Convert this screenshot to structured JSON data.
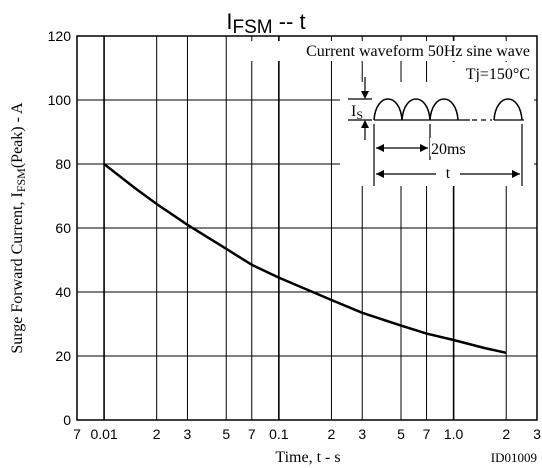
{
  "chart_data": {
    "type": "line",
    "title": "I",
    "title_sub": "FSM",
    "title_suffix": " -- t",
    "ylabel_main": "Surge Forward Current, I",
    "ylabel_sub": "FSM",
    "ylabel_suffix": "(Peak)  -  A",
    "xlabel": "Time, t  - s",
    "figure_id": "ID01009",
    "x_scale": "log",
    "xlim": [
      0.007,
      3
    ],
    "ylim": [
      0,
      120
    ],
    "grid": true,
    "y_ticks": [
      "0",
      "20",
      "40",
      "60",
      "80",
      "100",
      "120"
    ],
    "x_tick_labels": [
      {
        "value": 0.007,
        "label": "7"
      },
      {
        "value": 0.01,
        "label": "0.01"
      },
      {
        "value": 0.02,
        "label": "2"
      },
      {
        "value": 0.03,
        "label": "3"
      },
      {
        "value": 0.05,
        "label": "5"
      },
      {
        "value": 0.07,
        "label": "7"
      },
      {
        "value": 0.1,
        "label": "0.1"
      },
      {
        "value": 0.2,
        "label": "2"
      },
      {
        "value": 0.3,
        "label": "3"
      },
      {
        "value": 0.5,
        "label": "5"
      },
      {
        "value": 0.7,
        "label": "7"
      },
      {
        "value": 1.0,
        "label": "1.0"
      },
      {
        "value": 2,
        "label": "2"
      },
      {
        "value": 3,
        "label": "3"
      }
    ],
    "series": [
      {
        "x": [
          0.01,
          0.015,
          0.02,
          0.03,
          0.05,
          0.07,
          0.1,
          0.2,
          0.3,
          0.5,
          0.7,
          1.0,
          1.5,
          2.0
        ],
        "y": [
          80,
          72.5,
          67.5,
          61,
          53.5,
          48.5,
          44.5,
          37.5,
          33.5,
          29.5,
          27,
          25,
          22.5,
          21
        ]
      }
    ],
    "annotations": {
      "line1": "Current waveform 50Hz sine wave",
      "line2": "Tj=150°C",
      "is_label": "I",
      "is_sub": "S",
      "period_label": "20ms",
      "t_label": "t"
    }
  }
}
